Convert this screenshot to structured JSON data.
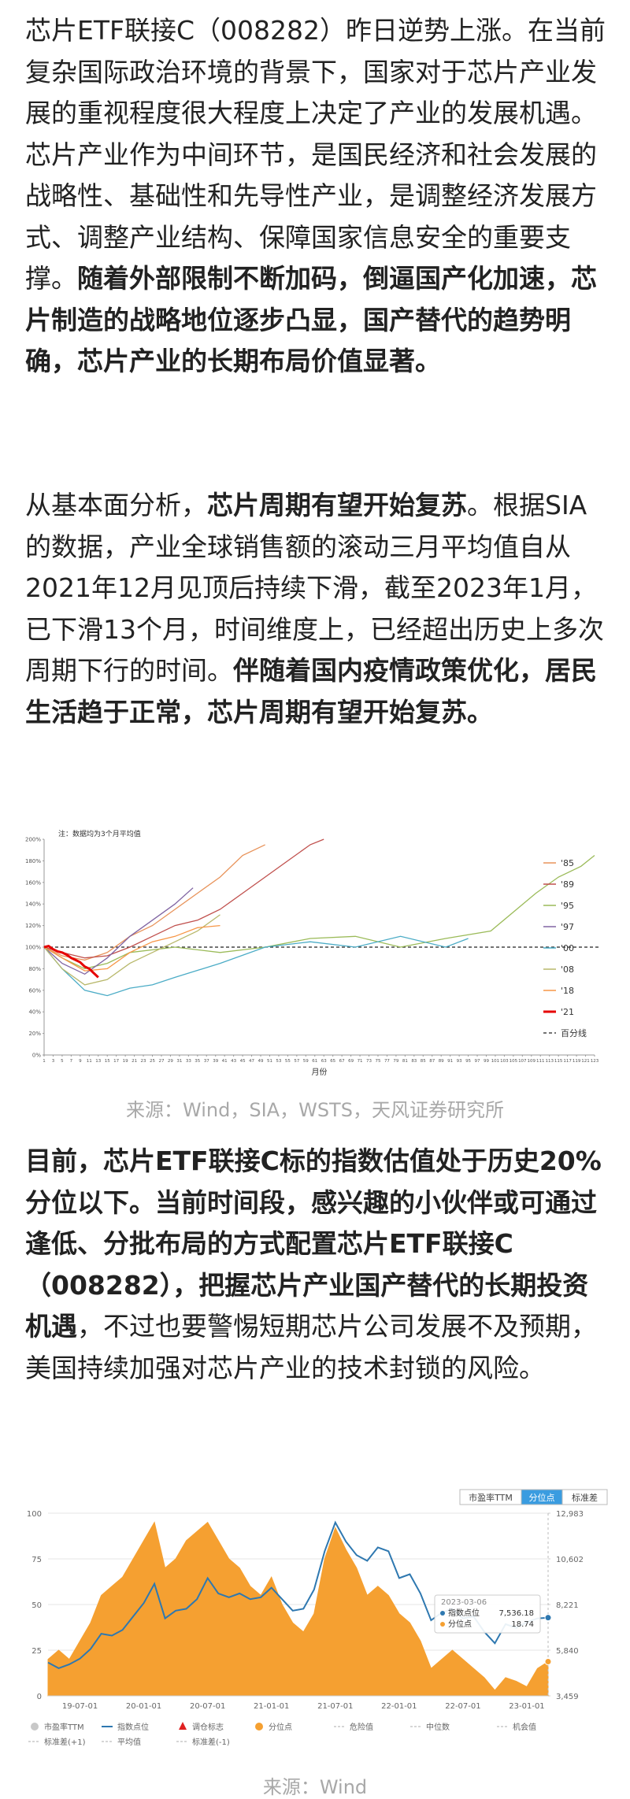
{
  "paragraphs": [
    {
      "segments": [
        {
          "text": "芯片ETF联接C（008282）昨日逆势上涨。在当前复杂国际政治环境的背景下，国家对于芯片产业发展的重视程度很大程度上决定了产业的发展机遇。芯片产业作为中间环节，是国民经济和社会发展的战略性、基础性和先导性产业，是调整经济发展方式、调整产业结构、保障国家信息安全的重要支撑。",
          "bold": false
        },
        {
          "text": "随着外部限制不断加码，倒逼国产化加速，芯片制造的战略地位逐步凸显，国产替代的趋势明确，芯片产业的长期布局价值显著。",
          "bold": true
        }
      ]
    },
    {
      "segments": [
        {
          "text": "从基本面分析，",
          "bold": false
        },
        {
          "text": "芯片周期有望开始复苏",
          "bold": true
        },
        {
          "text": "。根据SIA的数据，产业全球销售额的滚动三月平均值自从2021年12月见顶后持续下滑，截至2023年1月，已下滑13个月，时间维度上，已经超出历史上多次周期下行的时间。",
          "bold": false
        },
        {
          "text": "伴随着国内疫情政策优化，居民生活趋于正常，芯片周期有望开始复苏。",
          "bold": true
        }
      ]
    },
    {
      "segments": [
        {
          "text": "目前，芯片ETF联接C标的指数估值处于历史20%分位以下。当前时间段，感兴趣的小伙伴或可通过逢低、分批布局的方式配置芯片ETF联接C（008282），把握芯片产业国产替代的长期投资机遇",
          "bold": true
        },
        {
          "text": "，不过也要警惕短期芯片公司发展不及预期，美国持续加强对芯片产业的技术封锁的风险。",
          "bold": false
        }
      ]
    }
  ],
  "captions": [
    "来源：Wind，SIA，WSTS，天风证券研究所",
    "来源：Wind"
  ],
  "chart_data": [
    {
      "type": "line",
      "note": "注：数据均为3个月平均值",
      "xlabel": "月份",
      "xlim": [
        1,
        123
      ],
      "xticks": [
        1,
        3,
        5,
        7,
        9,
        11,
        13,
        15,
        17,
        19,
        21,
        23,
        25,
        27,
        29,
        31,
        33,
        35,
        37,
        39,
        41,
        43,
        45,
        47,
        49,
        51,
        53,
        55,
        57,
        59,
        61,
        63,
        65,
        67,
        69,
        71,
        73,
        75,
        77,
        79,
        81,
        83,
        85,
        87,
        89,
        91,
        93,
        95,
        97,
        99,
        101,
        103,
        105,
        107,
        109,
        111,
        113,
        115,
        117,
        119,
        121,
        123
      ],
      "ylim": [
        0,
        200
      ],
      "yticks": [
        {
          "value": 0,
          "label": "0%"
        },
        {
          "value": 20,
          "label": "20%"
        },
        {
          "value": 40,
          "label": "40%"
        },
        {
          "value": 60,
          "label": "60%"
        },
        {
          "value": 80,
          "label": "80%"
        },
        {
          "value": 100,
          "label": "100%"
        },
        {
          "value": 120,
          "label": "120%"
        },
        {
          "value": 140,
          "label": "140%"
        },
        {
          "value": 160,
          "label": "160%"
        },
        {
          "value": 180,
          "label": "180%"
        },
        {
          "value": 200,
          "label": "200%"
        }
      ],
      "series": [
        {
          "name": "'85",
          "color": "#e8935a",
          "x": [
            1,
            5,
            10,
            15,
            20,
            25,
            30,
            35,
            40,
            45,
            50
          ],
          "values": [
            100,
            92,
            88,
            95,
            110,
            120,
            135,
            150,
            165,
            185,
            195
          ]
        },
        {
          "name": "'89",
          "color": "#c0504d",
          "x": [
            1,
            5,
            10,
            15,
            20,
            25,
            30,
            35,
            40,
            45,
            50,
            55,
            60,
            63
          ],
          "values": [
            100,
            95,
            90,
            92,
            100,
            110,
            120,
            125,
            135,
            150,
            165,
            180,
            195,
            200
          ]
        },
        {
          "name": "'95",
          "color": "#9bbb59",
          "x": [
            1,
            5,
            10,
            15,
            20,
            30,
            40,
            50,
            60,
            70,
            80,
            90,
            100,
            110,
            115,
            120,
            123
          ],
          "values": [
            100,
            90,
            80,
            85,
            95,
            100,
            95,
            100,
            108,
            110,
            100,
            108,
            115,
            150,
            165,
            175,
            185
          ]
        },
        {
          "name": "'97",
          "color": "#8064a2",
          "x": [
            1,
            5,
            10,
            15,
            20,
            25,
            30,
            34
          ],
          "values": [
            100,
            85,
            75,
            90,
            110,
            125,
            140,
            155
          ]
        },
        {
          "name": "'00",
          "color": "#4bacc6",
          "x": [
            1,
            5,
            10,
            15,
            20,
            25,
            30,
            40,
            50,
            60,
            70,
            80,
            90,
            95
          ],
          "values": [
            100,
            80,
            60,
            55,
            62,
            65,
            72,
            85,
            100,
            105,
            100,
            110,
            100,
            108
          ]
        },
        {
          "name": "'08",
          "color": "#b8b86b",
          "x": [
            1,
            5,
            10,
            15,
            20,
            25,
            30,
            35,
            40
          ],
          "values": [
            100,
            80,
            65,
            70,
            85,
            95,
            105,
            115,
            130
          ]
        },
        {
          "name": "'18",
          "color": "#f79646",
          "x": [
            1,
            5,
            10,
            15,
            20,
            25,
            30,
            35,
            40
          ],
          "values": [
            100,
            90,
            78,
            80,
            95,
            105,
            110,
            118,
            120
          ]
        },
        {
          "name": "'21",
          "color": "#e60000",
          "width": 3,
          "x": [
            1,
            2,
            3,
            4,
            5,
            6,
            7,
            8,
            9,
            10,
            11,
            12,
            13
          ],
          "values": [
            100,
            101,
            98,
            96,
            95,
            93,
            90,
            88,
            86,
            82,
            80,
            76,
            72
          ]
        }
      ],
      "reference_line": {
        "name": "百分线",
        "value": 100,
        "color": "#222222"
      }
    },
    {
      "type": "area",
      "tabs": {
        "items": [
          "市盈率TTM",
          "分位点",
          "标准差"
        ],
        "active": 1,
        "active_color": "#3a9ce0"
      },
      "categories": [
        null,
        null,
        null,
        "19-07-01",
        null,
        null,
        null,
        null,
        null,
        "20-01-01",
        null,
        null,
        null,
        null,
        null,
        "20-07-01",
        null,
        null,
        null,
        null,
        null,
        "21-01-01",
        null,
        null,
        null,
        null,
        null,
        "21-07-01",
        null,
        null,
        null,
        null,
        null,
        "22-01-01",
        null,
        null,
        null,
        null,
        null,
        "22-07-01",
        null,
        null,
        null,
        null,
        null,
        "23-01-01",
        null,
        null
      ],
      "ylim": [
        0,
        100
      ],
      "yticks": [
        0,
        25,
        50,
        75,
        100
      ],
      "y2lim": [
        3459,
        12983
      ],
      "y2ticks": [
        {
          "value": 3459,
          "label": "3,459"
        },
        {
          "value": 5840,
          "label": "5,840"
        },
        {
          "value": 8221,
          "label": "8,221"
        },
        {
          "value": 10602,
          "label": "10,602"
        },
        {
          "value": 12983,
          "label": "12,983"
        }
      ],
      "series": [
        {
          "name": "指数点位",
          "color": "#2e78b0",
          "axis": "y2",
          "values": [
            5200,
            4900,
            5100,
            5400,
            5900,
            6700,
            6600,
            6900,
            7600,
            8300,
            9300,
            7500,
            7900,
            8000,
            8500,
            9600,
            8800,
            8600,
            8800,
            8500,
            8600,
            9100,
            8500,
            7900,
            8000,
            9000,
            11000,
            12500,
            11500,
            10800,
            10500,
            11200,
            11000,
            9600,
            9800,
            8800,
            7400,
            7800,
            8000,
            7500,
            7600,
            6800,
            6200,
            7200,
            7000,
            7300,
            7500,
            7536.18
          ]
        },
        {
          "name": "分位点",
          "color": "#f5a031",
          "values": [
            20,
            25,
            20,
            30,
            40,
            55,
            60,
            65,
            75,
            85,
            95,
            70,
            75,
            85,
            90,
            95,
            85,
            75,
            70,
            60,
            55,
            65,
            50,
            40,
            35,
            45,
            75,
            92,
            80,
            70,
            55,
            60,
            55,
            45,
            40,
            30,
            15,
            20,
            25,
            20,
            15,
            10,
            3,
            10,
            8,
            5,
            15,
            18.74
          ]
        }
      ],
      "tooltip": {
        "title": "2023-03-06",
        "value_labels": [
          "7,536.18",
          "18.74"
        ]
      },
      "legend": [
        {
          "name": "市盈率TTM",
          "symbol": "circle",
          "color": "#c8c8c8"
        },
        {
          "name": "指数点位",
          "symbol": "line",
          "color": "#2e78b0"
        },
        {
          "name": "调仓标志",
          "symbol": "triangle",
          "color": "#e02020"
        },
        {
          "name": "分位点",
          "symbol": "circle",
          "color": "#f5a031"
        },
        {
          "name": "危险值",
          "symbol": "dash",
          "color": "#c8c8c8"
        },
        {
          "name": "中位数",
          "symbol": "dash",
          "color": "#c8c8c8"
        },
        {
          "name": "机会值",
          "symbol": "dash",
          "color": "#c8c8c8"
        },
        {
          "name": "标准差(+1)",
          "symbol": "dash",
          "color": "#c8c8c8"
        },
        {
          "name": "平均值",
          "symbol": "dash",
          "color": "#c8c8c8"
        },
        {
          "name": "标准差(-1)",
          "symbol": "dash",
          "color": "#c8c8c8"
        }
      ]
    }
  ]
}
